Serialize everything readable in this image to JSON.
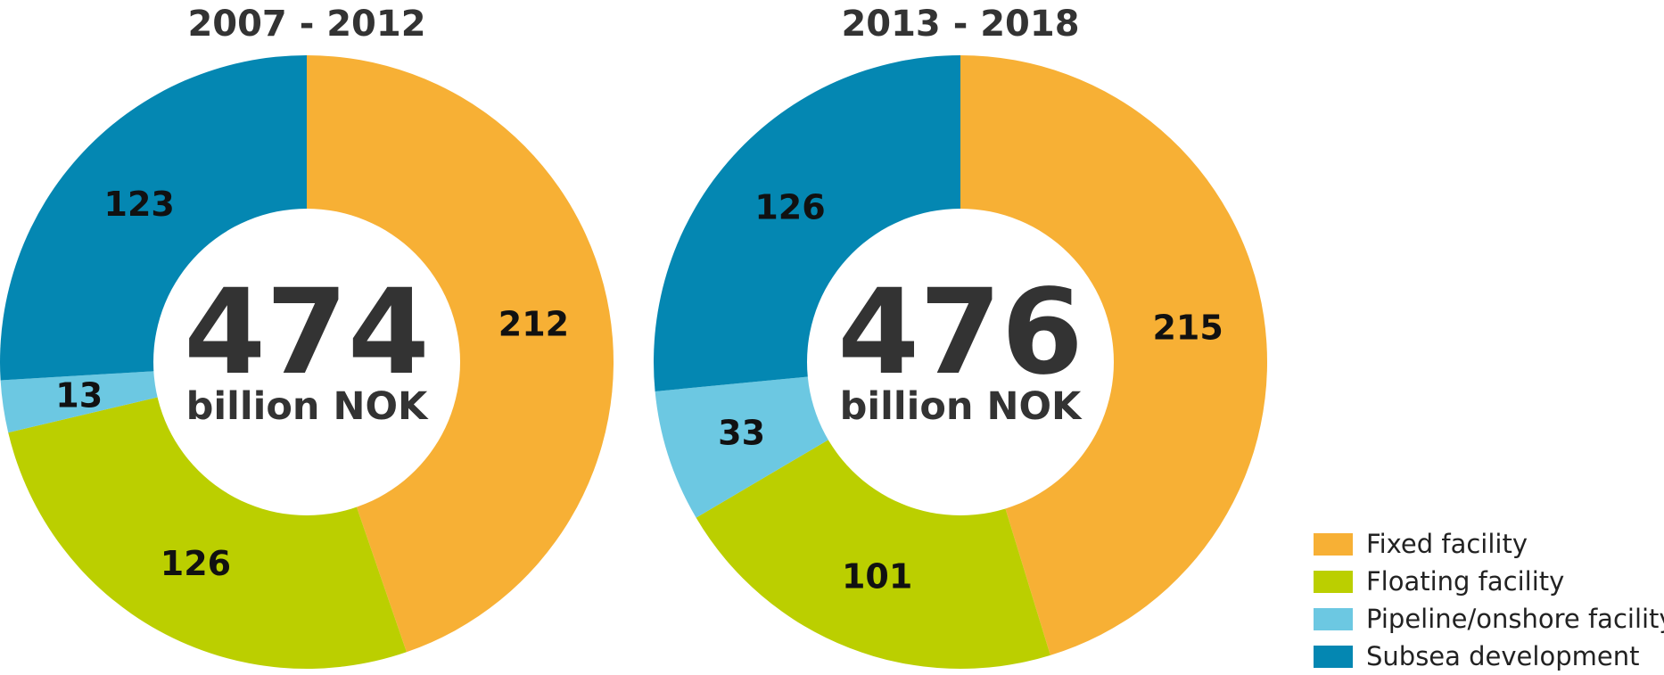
{
  "chart_data": [
    {
      "type": "pie",
      "title": "2007 - 2012",
      "center_total": "474",
      "center_unit": "billion NOK",
      "slices": [
        {
          "name": "Fixed facility",
          "value": 212,
          "label": "212",
          "color": "#f7b035"
        },
        {
          "name": "Floating facility",
          "value": 126,
          "label": "126",
          "color": "#bbcf00"
        },
        {
          "name": "Pipeline/onshore facility",
          "value": 13,
          "label": "13",
          "color": "#6cc8e2"
        },
        {
          "name": "Subsea development",
          "value": 123,
          "label": "123",
          "color": "#0487b2"
        }
      ]
    },
    {
      "type": "pie",
      "title": "2013 - 2018",
      "center_total": "476",
      "center_unit": "billion NOK",
      "slices": [
        {
          "name": "Fixed facility",
          "value": 215,
          "label": "215",
          "color": "#f7b035"
        },
        {
          "name": "Floating facility",
          "value": 101,
          "label": "101",
          "color": "#bbcf00"
        },
        {
          "name": "Pipeline/onshore facility",
          "value": 33,
          "label": "33",
          "color": "#6cc8e2"
        },
        {
          "name": "Subsea development",
          "value": 126,
          "label": "126",
          "color": "#0487b2"
        }
      ]
    }
  ],
  "legend": {
    "placement": "bottom-right",
    "items": [
      {
        "label": "Fixed facility",
        "color": "#f7b035"
      },
      {
        "label": "Floating facility",
        "color": "#bbcf00"
      },
      {
        "label": "Pipeline/onshore facility",
        "color": "#6cc8e2"
      },
      {
        "label": "Subsea development",
        "color": "#0487b2"
      }
    ]
  }
}
